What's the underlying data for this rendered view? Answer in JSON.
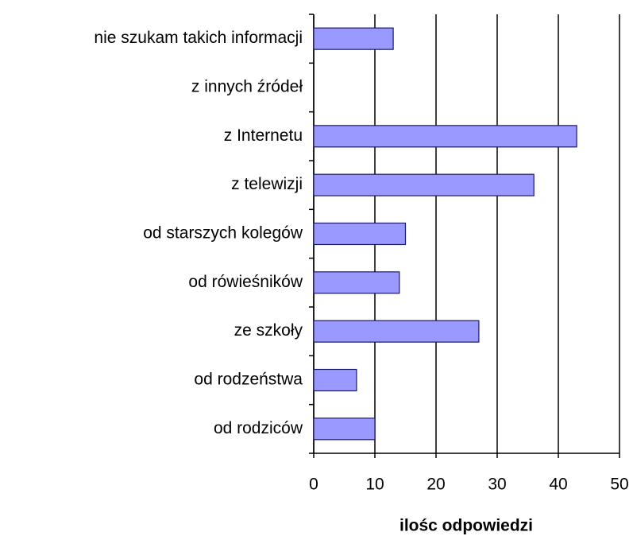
{
  "chart_data": {
    "type": "barh",
    "categories": [
      "nie szukam takich informacji",
      "z innych źródeł",
      "z Internetu",
      "z telewizji",
      "od starszych kolegów",
      "od rówieśników",
      "ze szkoły",
      "od rodzeństwa",
      "od rodziców"
    ],
    "values": [
      13,
      0,
      43,
      36,
      15,
      14,
      27,
      7,
      10
    ],
    "color": "#9999ff",
    "xlabel": "ilośc odpowiedzi",
    "xlim": [
      0,
      50
    ],
    "xticks": [
      0,
      10,
      20,
      30,
      40,
      50
    ],
    "grid": true
  }
}
